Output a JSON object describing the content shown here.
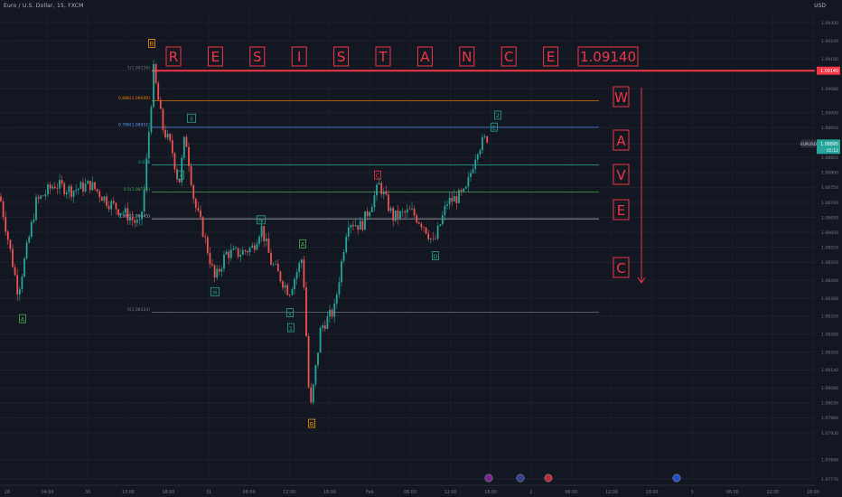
{
  "header": {
    "symbol_label": "Euro / U.S. Dollar, 15, FXCM",
    "currency": "USD"
  },
  "colors": {
    "background": "#131722",
    "up_candle": "#26a69a",
    "down_candle": "#ef5350",
    "resistance": "#f23645",
    "label_red": "#f23645",
    "label_teal": "#22ab94",
    "label_green": "#4caf50",
    "label_orange": "#ff9800",
    "fib_1": "#787b86",
    "fib_0886": "#f57c00",
    "fib_0786": "#5b9cf6",
    "fib_0618": "#22ab94",
    "fib_05": "#4caf50",
    "fib_0382": "#b2b5be",
    "fib_0": "#787b86"
  },
  "chart_data": {
    "type": "candlestick",
    "instrument": "EURUSD",
    "timeframe": "15",
    "ylim": [
      1.07776,
      1.0934
    ],
    "y_ticks": [
      "1.09300",
      "1.09240",
      "1.09180",
      "1.09140",
      "1.09080",
      "1.09000",
      "1.08950",
      "1.08895",
      "1.08850",
      "1.08800",
      "1.08750",
      "1.08700",
      "1.08650",
      "1.08600",
      "1.08550",
      "1.08500",
      "1.08440",
      "1.08380",
      "1.08320",
      "1.08260",
      "1.08200",
      "1.08140",
      "1.08080",
      "1.08030",
      "1.07980",
      "1.07930",
      "1.07840",
      "1.07776"
    ],
    "x_ticks": [
      "28",
      "04:00",
      "30",
      "13:00",
      "18:00",
      "31",
      "06:00",
      "12:00",
      "18:00",
      "Feb",
      "06:00",
      "12:00",
      "18:00",
      "2",
      "06:00",
      "12:00",
      "18:00",
      "3",
      "06:00",
      "12:00",
      "18:00"
    ],
    "path_points": [
      {
        "t": 0,
        "p": 1.0872
      },
      {
        "t": 20,
        "p": 1.084
      },
      {
        "t": 40,
        "p": 1.087
      },
      {
        "t": 60,
        "p": 1.0876
      },
      {
        "t": 80,
        "p": 1.0874
      },
      {
        "t": 100,
        "p": 1.0876
      },
      {
        "t": 120,
        "p": 1.087
      },
      {
        "t": 140,
        "p": 1.0866
      },
      {
        "t": 155,
        "p": 1.0862
      },
      {
        "t": 160,
        "p": 1.0875
      },
      {
        "t": 170,
        "p": 1.0914
      },
      {
        "t": 180,
        "p": 1.0895
      },
      {
        "t": 190,
        "p": 1.0888
      },
      {
        "t": 198,
        "p": 1.0876
      },
      {
        "t": 205,
        "p": 1.0893
      },
      {
        "t": 215,
        "p": 1.087
      },
      {
        "t": 225,
        "p": 1.086
      },
      {
        "t": 238,
        "p": 1.0844
      },
      {
        "t": 250,
        "p": 1.0853
      },
      {
        "t": 265,
        "p": 1.0853
      },
      {
        "t": 280,
        "p": 1.0855
      },
      {
        "t": 289,
        "p": 1.0862
      },
      {
        "t": 300,
        "p": 1.085
      },
      {
        "t": 320,
        "p": 1.084
      },
      {
        "t": 335,
        "p": 1.0852
      },
      {
        "t": 343,
        "p": 1.0799
      },
      {
        "t": 355,
        "p": 1.0828
      },
      {
        "t": 370,
        "p": 1.0834
      },
      {
        "t": 385,
        "p": 1.0864
      },
      {
        "t": 400,
        "p": 1.0862
      },
      {
        "t": 420,
        "p": 1.0876
      },
      {
        "t": 435,
        "p": 1.0865
      },
      {
        "t": 455,
        "p": 1.0867
      },
      {
        "t": 470,
        "p": 1.0862
      },
      {
        "t": 480,
        "p": 1.0856
      },
      {
        "t": 495,
        "p": 1.087
      },
      {
        "t": 515,
        "p": 1.0873
      },
      {
        "t": 528,
        "p": 1.0888
      },
      {
        "t": 540,
        "p": 1.0892
      }
    ],
    "last_price": "1.08895",
    "countdown": "05:12",
    "resistance_level": 1.0914,
    "resistance_text": [
      "R",
      "E",
      "S",
      "I",
      "S",
      "T",
      "A",
      "N",
      "C",
      "E"
    ],
    "resistance_value": "1.09140",
    "fib_levels": [
      {
        "ratio": "1",
        "price": 1.0914,
        "label": "1(1.09139)",
        "color_key": "fib_1"
      },
      {
        "ratio": "0.886",
        "price": 1.0904,
        "label": "0.886(1.09040)",
        "color_key": "fib_0886"
      },
      {
        "ratio": "0.786",
        "price": 1.08951,
        "label": "0.786(1.08951)",
        "color_key": "fib_0786"
      },
      {
        "ratio": "0.618",
        "price": 1.08825,
        "label": "0.618",
        "color_key": "fib_0618"
      },
      {
        "ratio": "0.5",
        "price": 1.08735,
        "label": "0.5(1.08735)",
        "color_key": "fib_05"
      },
      {
        "ratio": "0.382",
        "price": 1.08645,
        "label": "0.382(1.08645)",
        "color_key": "fib_0382"
      },
      {
        "ratio": "0",
        "price": 1.08333,
        "label": "0(1.08333)",
        "color_key": "fib_0"
      }
    ],
    "wave_labels": [
      {
        "text": "A",
        "t": 25,
        "p": 1.0831,
        "color_key": "label_green"
      },
      {
        "text": "B",
        "t": 168,
        "p": 1.0923,
        "color_key": "label_orange"
      },
      {
        "text": "i",
        "t": 200,
        "p": 1.0879,
        "color_key": "label_teal"
      },
      {
        "text": "ii",
        "t": 212,
        "p": 1.0898,
        "color_key": "label_teal"
      },
      {
        "text": "iii",
        "t": 238,
        "p": 1.084,
        "color_key": "label_teal"
      },
      {
        "text": "iv",
        "t": 289,
        "p": 1.0864,
        "color_key": "label_teal"
      },
      {
        "text": "A",
        "t": 335,
        "p": 1.0856,
        "color_key": "label_green"
      },
      {
        "text": "v",
        "t": 321,
        "p": 1.0833,
        "color_key": "label_teal"
      },
      {
        "text": "1",
        "t": 322,
        "p": 1.0828,
        "color_key": "label_teal"
      },
      {
        "text": "B",
        "t": 345,
        "p": 1.0796,
        "color_key": "label_orange"
      },
      {
        "text": "C",
        "t": 418,
        "p": 1.0879,
        "color_key": "label_red"
      },
      {
        "text": "D",
        "t": 482,
        "p": 1.0852,
        "color_key": "label_teal"
      },
      {
        "text": "2",
        "t": 551,
        "p": 1.0899,
        "color_key": "label_teal"
      },
      {
        "text": "E",
        "t": 547,
        "p": 1.0895,
        "color_key": "label_teal"
      }
    ],
    "wave_text": [
      "W",
      "A",
      "V",
      "E",
      "C"
    ]
  }
}
